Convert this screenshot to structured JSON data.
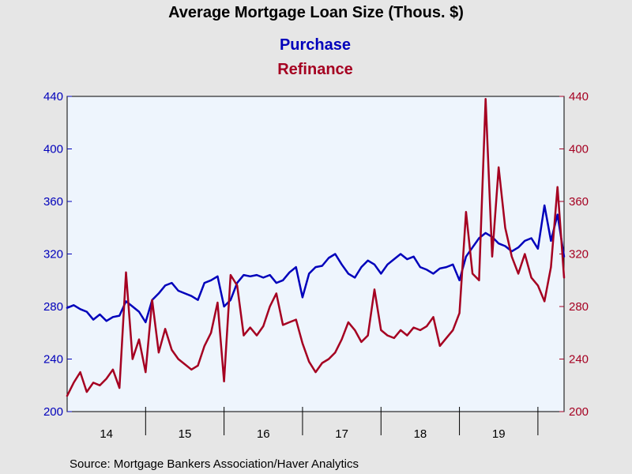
{
  "chart_data": {
    "type": "line",
    "title": "Average Mortgage Loan Size (Thous. $)",
    "source": "Source:  Mortgage Bankers Association/Haver Analytics",
    "x_range": [
      "2014-01",
      "2020-05"
    ],
    "x_labels": [
      "14",
      "15",
      "16",
      "17",
      "18",
      "19"
    ],
    "y_left": {
      "range": [
        200,
        440
      ],
      "ticks": [
        "200",
        "240",
        "280",
        "320",
        "360",
        "400",
        "440"
      ],
      "color": "#0000bb"
    },
    "y_right": {
      "range": [
        200,
        440
      ],
      "ticks": [
        "200",
        "240",
        "280",
        "320",
        "360",
        "400",
        "440"
      ],
      "color": "#a50021"
    },
    "grid": false,
    "plot_background": "#eef5fd",
    "legend_position": "top-center",
    "series": [
      {
        "name": "Purchase",
        "axis": "left",
        "color": "#0000bb",
        "points": [
          [
            "2014-01",
            279
          ],
          [
            "2014-02",
            281
          ],
          [
            "2014-03",
            278
          ],
          [
            "2014-04",
            276
          ],
          [
            "2014-05",
            270
          ],
          [
            "2014-06",
            274
          ],
          [
            "2014-07",
            269
          ],
          [
            "2014-08",
            272
          ],
          [
            "2014-09",
            273
          ],
          [
            "2014-10",
            284
          ],
          [
            "2014-11",
            280
          ],
          [
            "2014-12",
            276
          ],
          [
            "2015-01",
            268
          ],
          [
            "2015-02",
            285
          ],
          [
            "2015-03",
            290
          ],
          [
            "2015-04",
            296
          ],
          [
            "2015-05",
            298
          ],
          [
            "2015-06",
            292
          ],
          [
            "2015-07",
            290
          ],
          [
            "2015-08",
            288
          ],
          [
            "2015-09",
            285
          ],
          [
            "2015-10",
            298
          ],
          [
            "2015-11",
            300
          ],
          [
            "2015-12",
            303
          ],
          [
            "2016-01",
            280
          ],
          [
            "2016-02",
            285
          ],
          [
            "2016-03",
            298
          ],
          [
            "2016-04",
            304
          ],
          [
            "2016-05",
            303
          ],
          [
            "2016-06",
            304
          ],
          [
            "2016-07",
            302
          ],
          [
            "2016-08",
            304
          ],
          [
            "2016-09",
            298
          ],
          [
            "2016-10",
            300
          ],
          [
            "2016-11",
            306
          ],
          [
            "2016-12",
            310
          ],
          [
            "2017-01",
            287
          ],
          [
            "2017-02",
            305
          ],
          [
            "2017-03",
            310
          ],
          [
            "2017-04",
            311
          ],
          [
            "2017-05",
            317
          ],
          [
            "2017-06",
            320
          ],
          [
            "2017-07",
            312
          ],
          [
            "2017-08",
            305
          ],
          [
            "2017-09",
            302
          ],
          [
            "2017-10",
            310
          ],
          [
            "2017-11",
            315
          ],
          [
            "2017-12",
            312
          ],
          [
            "2018-01",
            305
          ],
          [
            "2018-02",
            312
          ],
          [
            "2018-03",
            316
          ],
          [
            "2018-04",
            320
          ],
          [
            "2018-05",
            316
          ],
          [
            "2018-06",
            318
          ],
          [
            "2018-07",
            310
          ],
          [
            "2018-08",
            308
          ],
          [
            "2018-09",
            305
          ],
          [
            "2018-10",
            309
          ],
          [
            "2018-11",
            310
          ],
          [
            "2018-12",
            312
          ],
          [
            "2019-01",
            300
          ],
          [
            "2019-02",
            318
          ],
          [
            "2019-03",
            325
          ],
          [
            "2019-04",
            332
          ],
          [
            "2019-05",
            336
          ],
          [
            "2019-06",
            333
          ],
          [
            "2019-07",
            328
          ],
          [
            "2019-08",
            326
          ],
          [
            "2019-09",
            322
          ],
          [
            "2019-10",
            325
          ],
          [
            "2019-11",
            330
          ],
          [
            "2019-12",
            332
          ],
          [
            "2020-01",
            324
          ],
          [
            "2020-02",
            357
          ],
          [
            "2020-03",
            330
          ],
          [
            "2020-04",
            350
          ],
          [
            "2020-05",
            318
          ]
        ]
      },
      {
        "name": "Refinance",
        "axis": "right",
        "color": "#a50021",
        "points": [
          [
            "2014-01",
            212
          ],
          [
            "2014-02",
            222
          ],
          [
            "2014-03",
            230
          ],
          [
            "2014-04",
            215
          ],
          [
            "2014-05",
            222
          ],
          [
            "2014-06",
            220
          ],
          [
            "2014-07",
            225
          ],
          [
            "2014-08",
            232
          ],
          [
            "2014-09",
            218
          ],
          [
            "2014-10",
            306
          ],
          [
            "2014-11",
            240
          ],
          [
            "2014-12",
            255
          ],
          [
            "2015-01",
            230
          ],
          [
            "2015-02",
            285
          ],
          [
            "2015-03",
            245
          ],
          [
            "2015-04",
            263
          ],
          [
            "2015-05",
            247
          ],
          [
            "2015-06",
            240
          ],
          [
            "2015-07",
            236
          ],
          [
            "2015-08",
            232
          ],
          [
            "2015-09",
            235
          ],
          [
            "2015-10",
            250
          ],
          [
            "2015-11",
            260
          ],
          [
            "2015-12",
            283
          ],
          [
            "2016-01",
            223
          ],
          [
            "2016-02",
            304
          ],
          [
            "2016-03",
            296
          ],
          [
            "2016-04",
            258
          ],
          [
            "2016-05",
            264
          ],
          [
            "2016-06",
            258
          ],
          [
            "2016-07",
            265
          ],
          [
            "2016-08",
            280
          ],
          [
            "2016-09",
            290
          ],
          [
            "2016-10",
            266
          ],
          [
            "2016-11",
            268
          ],
          [
            "2016-12",
            270
          ],
          [
            "2017-01",
            252
          ],
          [
            "2017-02",
            238
          ],
          [
            "2017-03",
            230
          ],
          [
            "2017-04",
            237
          ],
          [
            "2017-05",
            240
          ],
          [
            "2017-06",
            245
          ],
          [
            "2017-07",
            255
          ],
          [
            "2017-08",
            268
          ],
          [
            "2017-09",
            262
          ],
          [
            "2017-10",
            253
          ],
          [
            "2017-11",
            258
          ],
          [
            "2017-12",
            293
          ],
          [
            "2018-01",
            262
          ],
          [
            "2018-02",
            258
          ],
          [
            "2018-03",
            256
          ],
          [
            "2018-04",
            262
          ],
          [
            "2018-05",
            258
          ],
          [
            "2018-06",
            264
          ],
          [
            "2018-07",
            262
          ],
          [
            "2018-08",
            265
          ],
          [
            "2018-09",
            272
          ],
          [
            "2018-10",
            250
          ],
          [
            "2018-11",
            256
          ],
          [
            "2018-12",
            262
          ],
          [
            "2019-01",
            275
          ],
          [
            "2019-02",
            352
          ],
          [
            "2019-03",
            305
          ],
          [
            "2019-04",
            300
          ],
          [
            "2019-05",
            438
          ],
          [
            "2019-06",
            318
          ],
          [
            "2019-07",
            386
          ],
          [
            "2019-08",
            340
          ],
          [
            "2019-09",
            318
          ],
          [
            "2019-10",
            305
          ],
          [
            "2019-11",
            320
          ],
          [
            "2019-12",
            302
          ],
          [
            "2020-01",
            296
          ],
          [
            "2020-02",
            284
          ],
          [
            "2020-03",
            310
          ],
          [
            "2020-04",
            371
          ],
          [
            "2020-05",
            302
          ]
        ]
      }
    ]
  }
}
